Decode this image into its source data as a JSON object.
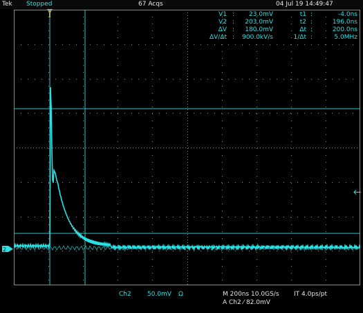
{
  "status_bar": {
    "brand": "Tek",
    "run_state": "Stopped",
    "acquisitions": "67 Acqs",
    "date_time": "04 Jul 19 14:49:47"
  },
  "cursor_readouts": {
    "v1_label": "V1",
    "v1_sep": ":",
    "v1_value": "23.0mV",
    "v2_label": "V2",
    "v2_sep": ":",
    "v2_value": "203.0mV",
    "dv_label": "ΔV",
    "dv_sep": ":",
    "dv_value": "180.0mV",
    "dvdt_label": "ΔV/Δt",
    "dvdt_sep": ":",
    "dvdt_value": "900.0kV/s",
    "t1_label": "t1",
    "t1_sep": ":",
    "t1_value": "-4.0ns",
    "t2_label": "t2",
    "t2_sep": ":",
    "t2_value": "196.0ns",
    "dt_label": "Δt",
    "dt_sep": ":",
    "dt_value": "200.0ns",
    "inv_dt_label": "1/Δt",
    "inv_dt_sep": ":",
    "inv_dt_value": "5.0MHz"
  },
  "bottom_bar": {
    "channel": "Ch2",
    "scale": "50.0mV",
    "coupling_symbol": "Ω",
    "timebase": "M 200ns 10.0GS/s",
    "interp": "IT 4.0ps/pt",
    "trigger": "A Ch2 ⁄ 82.0mV"
  },
  "colors": {
    "trace": "#27e3e6",
    "cursor": "#2cc7cc",
    "grid": "#8c8c8c",
    "marker": "#f0a000"
  },
  "icons": {
    "trigger_position": "trigger-position-marker-icon",
    "trigger_level": "trigger-level-arrow-icon",
    "channel_ground": "channel-2-ground-marker-icon"
  }
}
